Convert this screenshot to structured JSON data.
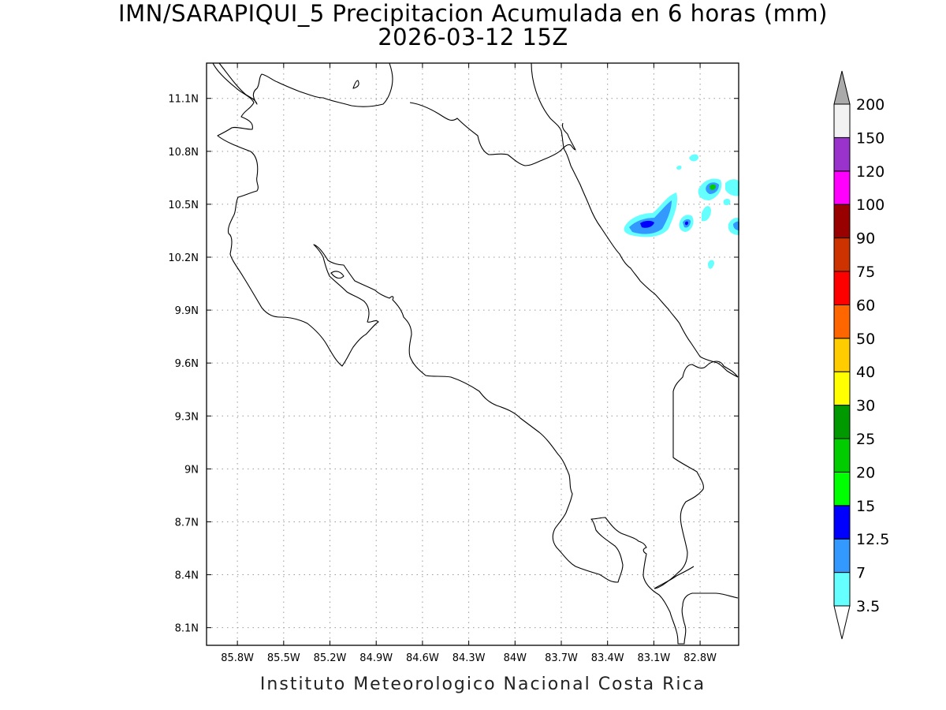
{
  "title": {
    "line1": "IMN/SARAPIQUI_5 Precipitacion Acumulada en 6 horas (mm)",
    "line2": "2026-03-12 15Z"
  },
  "footer": "Instituto Meteorologico Nacional Costa Rica",
  "map": {
    "lon_range": [
      -86.0,
      -82.55
    ],
    "lat_range": [
      8.0,
      11.3
    ],
    "x_ticks": [
      {
        "value": -85.8,
        "label": "85.8W"
      },
      {
        "value": -85.5,
        "label": "85.5W"
      },
      {
        "value": -85.2,
        "label": "85.2W"
      },
      {
        "value": -84.9,
        "label": "84.9W"
      },
      {
        "value": -84.6,
        "label": "84.6W"
      },
      {
        "value": -84.3,
        "label": "84.3W"
      },
      {
        "value": -84.0,
        "label": "84W"
      },
      {
        "value": -83.7,
        "label": "83.7W"
      },
      {
        "value": -83.4,
        "label": "83.4W"
      },
      {
        "value": -83.1,
        "label": "83.1W"
      },
      {
        "value": -82.8,
        "label": "82.8W"
      }
    ],
    "y_ticks": [
      {
        "value": 8.1,
        "label": "8.1N"
      },
      {
        "value": 8.4,
        "label": "8.4N"
      },
      {
        "value": 8.7,
        "label": "8.7N"
      },
      {
        "value": 9.0,
        "label": "9N"
      },
      {
        "value": 9.3,
        "label": "9.3N"
      },
      {
        "value": 9.6,
        "label": "9.6N"
      },
      {
        "value": 9.9,
        "label": "9.9N"
      },
      {
        "value": 10.2,
        "label": "10.2N"
      },
      {
        "value": 10.5,
        "label": "10.5N"
      },
      {
        "value": 10.8,
        "label": "10.8N"
      },
      {
        "value": 11.1,
        "label": "11.1N"
      }
    ],
    "grid": "dotted",
    "coastline_color": "#000000"
  },
  "colorbar": {
    "levels": [
      {
        "label": "3.5",
        "color": "#ffffff"
      },
      {
        "label": "7",
        "color": "#66ffff"
      },
      {
        "label": "12.5",
        "color": "#3399ff"
      },
      {
        "label": "15",
        "color": "#0000ff"
      },
      {
        "label": "20",
        "color": "#00ff00"
      },
      {
        "label": "25",
        "color": "#00cc00"
      },
      {
        "label": "30",
        "color": "#009900"
      },
      {
        "label": "40",
        "color": "#ffff00"
      },
      {
        "label": "50",
        "color": "#ffcc00"
      },
      {
        "label": "60",
        "color": "#ff6600"
      },
      {
        "label": "75",
        "color": "#ff0000"
      },
      {
        "label": "90",
        "color": "#cc3300"
      },
      {
        "label": "100",
        "color": "#990000"
      },
      {
        "label": "120",
        "color": "#ff00ff"
      },
      {
        "label": "150",
        "color": "#9933cc"
      },
      {
        "label": "200",
        "color": "#f2f2f2"
      }
    ],
    "top_arrow_color": "#aaaaaa",
    "bottom_arrow_color": "#ffffff"
  },
  "precip_colors": {
    "light": "#66ffff",
    "moderate": "#3399ff",
    "heavy": "#0000ff",
    "peak": "#00cc00"
  }
}
